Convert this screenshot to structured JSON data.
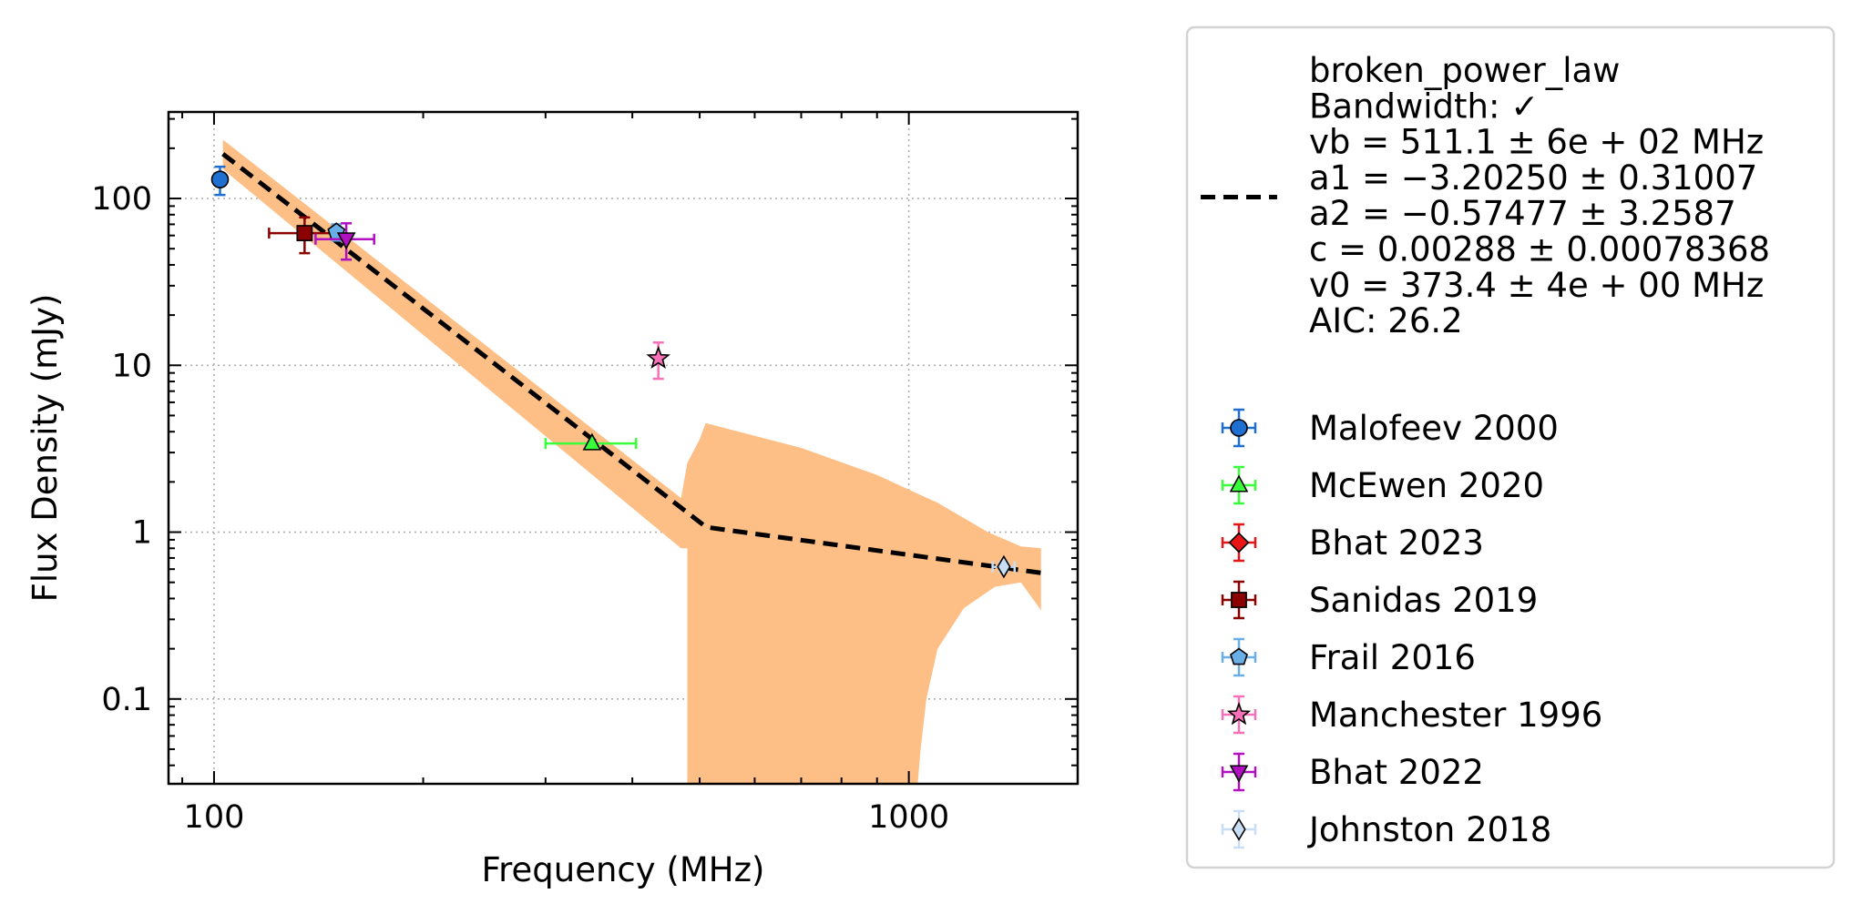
{
  "chart_data": {
    "type": "scatter",
    "xlabel": "Frequency (MHz)",
    "ylabel": "Flux Density (mJy)",
    "xscale": "log",
    "yscale": "log",
    "xlim": [
      86,
      1750
    ],
    "ylim": [
      0.031,
      330
    ],
    "xticks": [
      {
        "value": 100,
        "label": "100"
      },
      {
        "value": 1000,
        "label": "1000"
      }
    ],
    "yticks": [
      {
        "value": 0.1,
        "label": "0.1"
      },
      {
        "value": 1,
        "label": "1"
      },
      {
        "value": 10,
        "label": "10"
      },
      {
        "value": 100,
        "label": "100"
      }
    ],
    "grid": true,
    "legend_position": "outside-right",
    "fit": {
      "name": "broken_power_law",
      "color": "#000000",
      "band_color": "#fdbf86",
      "legend_lines": [
        "broken_power_law",
        "Bandwidth: ✓",
        "vb = 511.1 ± 6e + 02 MHz",
        "a1 = −3.20250 ± 0.31007",
        "a2 = −0.57477 ± 3.2587",
        "c = 0.00288 ± 0.00078368",
        "v0 = 373.4 ± 4e + 00 MHz",
        "AIC: 26.2"
      ],
      "line_points": [
        [
          103,
          185
        ],
        [
          511.1,
          1.07
        ],
        [
          1550,
          0.57
        ]
      ],
      "band_upper": [
        [
          103,
          225
        ],
        [
          470,
          1.6
        ],
        [
          480,
          2.6
        ],
        [
          500,
          3.6
        ],
        [
          510,
          4.5
        ],
        [
          700,
          3.2
        ],
        [
          900,
          2.2
        ],
        [
          1100,
          1.5
        ],
        [
          1300,
          1.0
        ],
        [
          1450,
          0.82
        ],
        [
          1550,
          0.8
        ]
      ],
      "band_lower": [
        [
          103,
          150
        ],
        [
          470,
          0.8
        ],
        [
          480,
          0.8
        ],
        [
          480,
          0.031
        ],
        [
          1030,
          0.031
        ],
        [
          1040,
          0.05
        ],
        [
          1060,
          0.1
        ],
        [
          1100,
          0.2
        ],
        [
          1200,
          0.35
        ],
        [
          1330,
          0.47
        ],
        [
          1450,
          0.5
        ],
        [
          1550,
          0.34
        ]
      ]
    },
    "series": [
      {
        "name": "Malofeev 2000",
        "marker": "circle",
        "color": "#1f6fd0",
        "ecolor": "#1f6fd0",
        "points": [
          {
            "x": 102,
            "y": 130,
            "ylo": 105,
            "yhi": 155
          }
        ]
      },
      {
        "name": "McEwen 2020",
        "marker": "triangle-up",
        "color": "#39ff3a",
        "ecolor": "#39ff3a",
        "points": [
          {
            "x": 350,
            "y": 3.4,
            "xlo": 300,
            "xhi": 405
          }
        ]
      },
      {
        "name": "Bhat 2023",
        "marker": "diamond",
        "color": "#e81416",
        "ecolor": "#e81416",
        "points": []
      },
      {
        "name": "Sanidas 2019",
        "marker": "square",
        "color": "#8b0000",
        "ecolor": "#8b0000",
        "points": [
          {
            "x": 135,
            "y": 62,
            "xlo": 120,
            "xhi": 150,
            "ylo": 47,
            "yhi": 77
          }
        ]
      },
      {
        "name": "Frail 2016",
        "marker": "pentagon",
        "color": "#6aaee8",
        "ecolor": "#6aaee8",
        "points": [
          {
            "x": 150,
            "y": 63,
            "ylo": 56,
            "yhi": 70
          }
        ]
      },
      {
        "name": "Manchester 1996",
        "marker": "star",
        "color": "#f770b8",
        "ecolor": "#f770b8",
        "points": [
          {
            "x": 436,
            "y": 11,
            "ylo": 8.3,
            "yhi": 13.7
          }
        ]
      },
      {
        "name": "Bhat 2022",
        "marker": "triangle-down",
        "color": "#b010c0",
        "ecolor": "#b010c0",
        "points": [
          {
            "x": 155,
            "y": 57,
            "xlo": 140,
            "xhi": 170,
            "ylo": 43,
            "yhi": 71
          }
        ]
      },
      {
        "name": "Johnston 2018",
        "marker": "thin-diamond",
        "color": "#c7def5",
        "ecolor": "#c7def5",
        "points": [
          {
            "x": 1370,
            "y": 0.62,
            "xlo": 1320,
            "xhi": 1420,
            "ylo": 0.58,
            "yhi": 0.66
          }
        ]
      }
    ]
  }
}
